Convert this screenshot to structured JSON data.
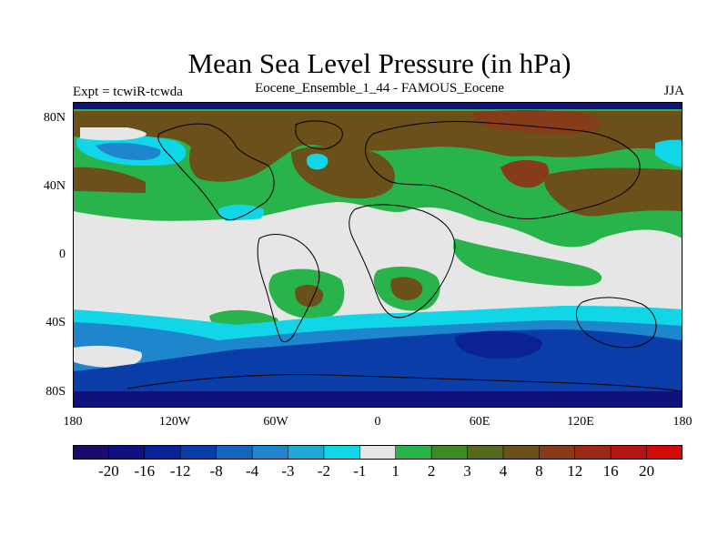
{
  "title": "Mean Sea Level Pressure (in hPa)",
  "left_label": "Expt = tcwiR-tcwda",
  "center_label": "Eocene_Ensemble_1_44 - FAMOUS_Eocene",
  "right_label": "JJA",
  "lat_ticks": [
    "80N",
    "40N",
    "0",
    "40S",
    "80S"
  ],
  "lon_ticks": [
    "180",
    "120W",
    "60W",
    "0",
    "60E",
    "120E",
    "180"
  ],
  "colorbar": {
    "labels": [
      "-20",
      "-16",
      "-12",
      "-8",
      "-4",
      "-3",
      "-2",
      "-1",
      "1",
      "2",
      "3",
      "4",
      "8",
      "12",
      "16",
      "20"
    ],
    "colors": [
      "#1e0a6e",
      "#10117f",
      "#0a2293",
      "#0a3da8",
      "#1465bd",
      "#1e86cc",
      "#1fa8d8",
      "#10d6e8",
      "#e6e6e6",
      "#28b44b",
      "#3c8c23",
      "#55691a",
      "#6b5019",
      "#873c19",
      "#9e2817",
      "#b41414",
      "#d20a0a"
    ]
  },
  "map_colors": {
    "ocean_neutral": "#e6e6e6",
    "green": "#28b44b",
    "olive": "#6b5019",
    "olive_dark": "#55691a",
    "brown": "#873c19",
    "cyan": "#10d6e8",
    "blue": "#1e86cc",
    "deep_blue": "#0a3da8",
    "navy": "#10117f"
  }
}
